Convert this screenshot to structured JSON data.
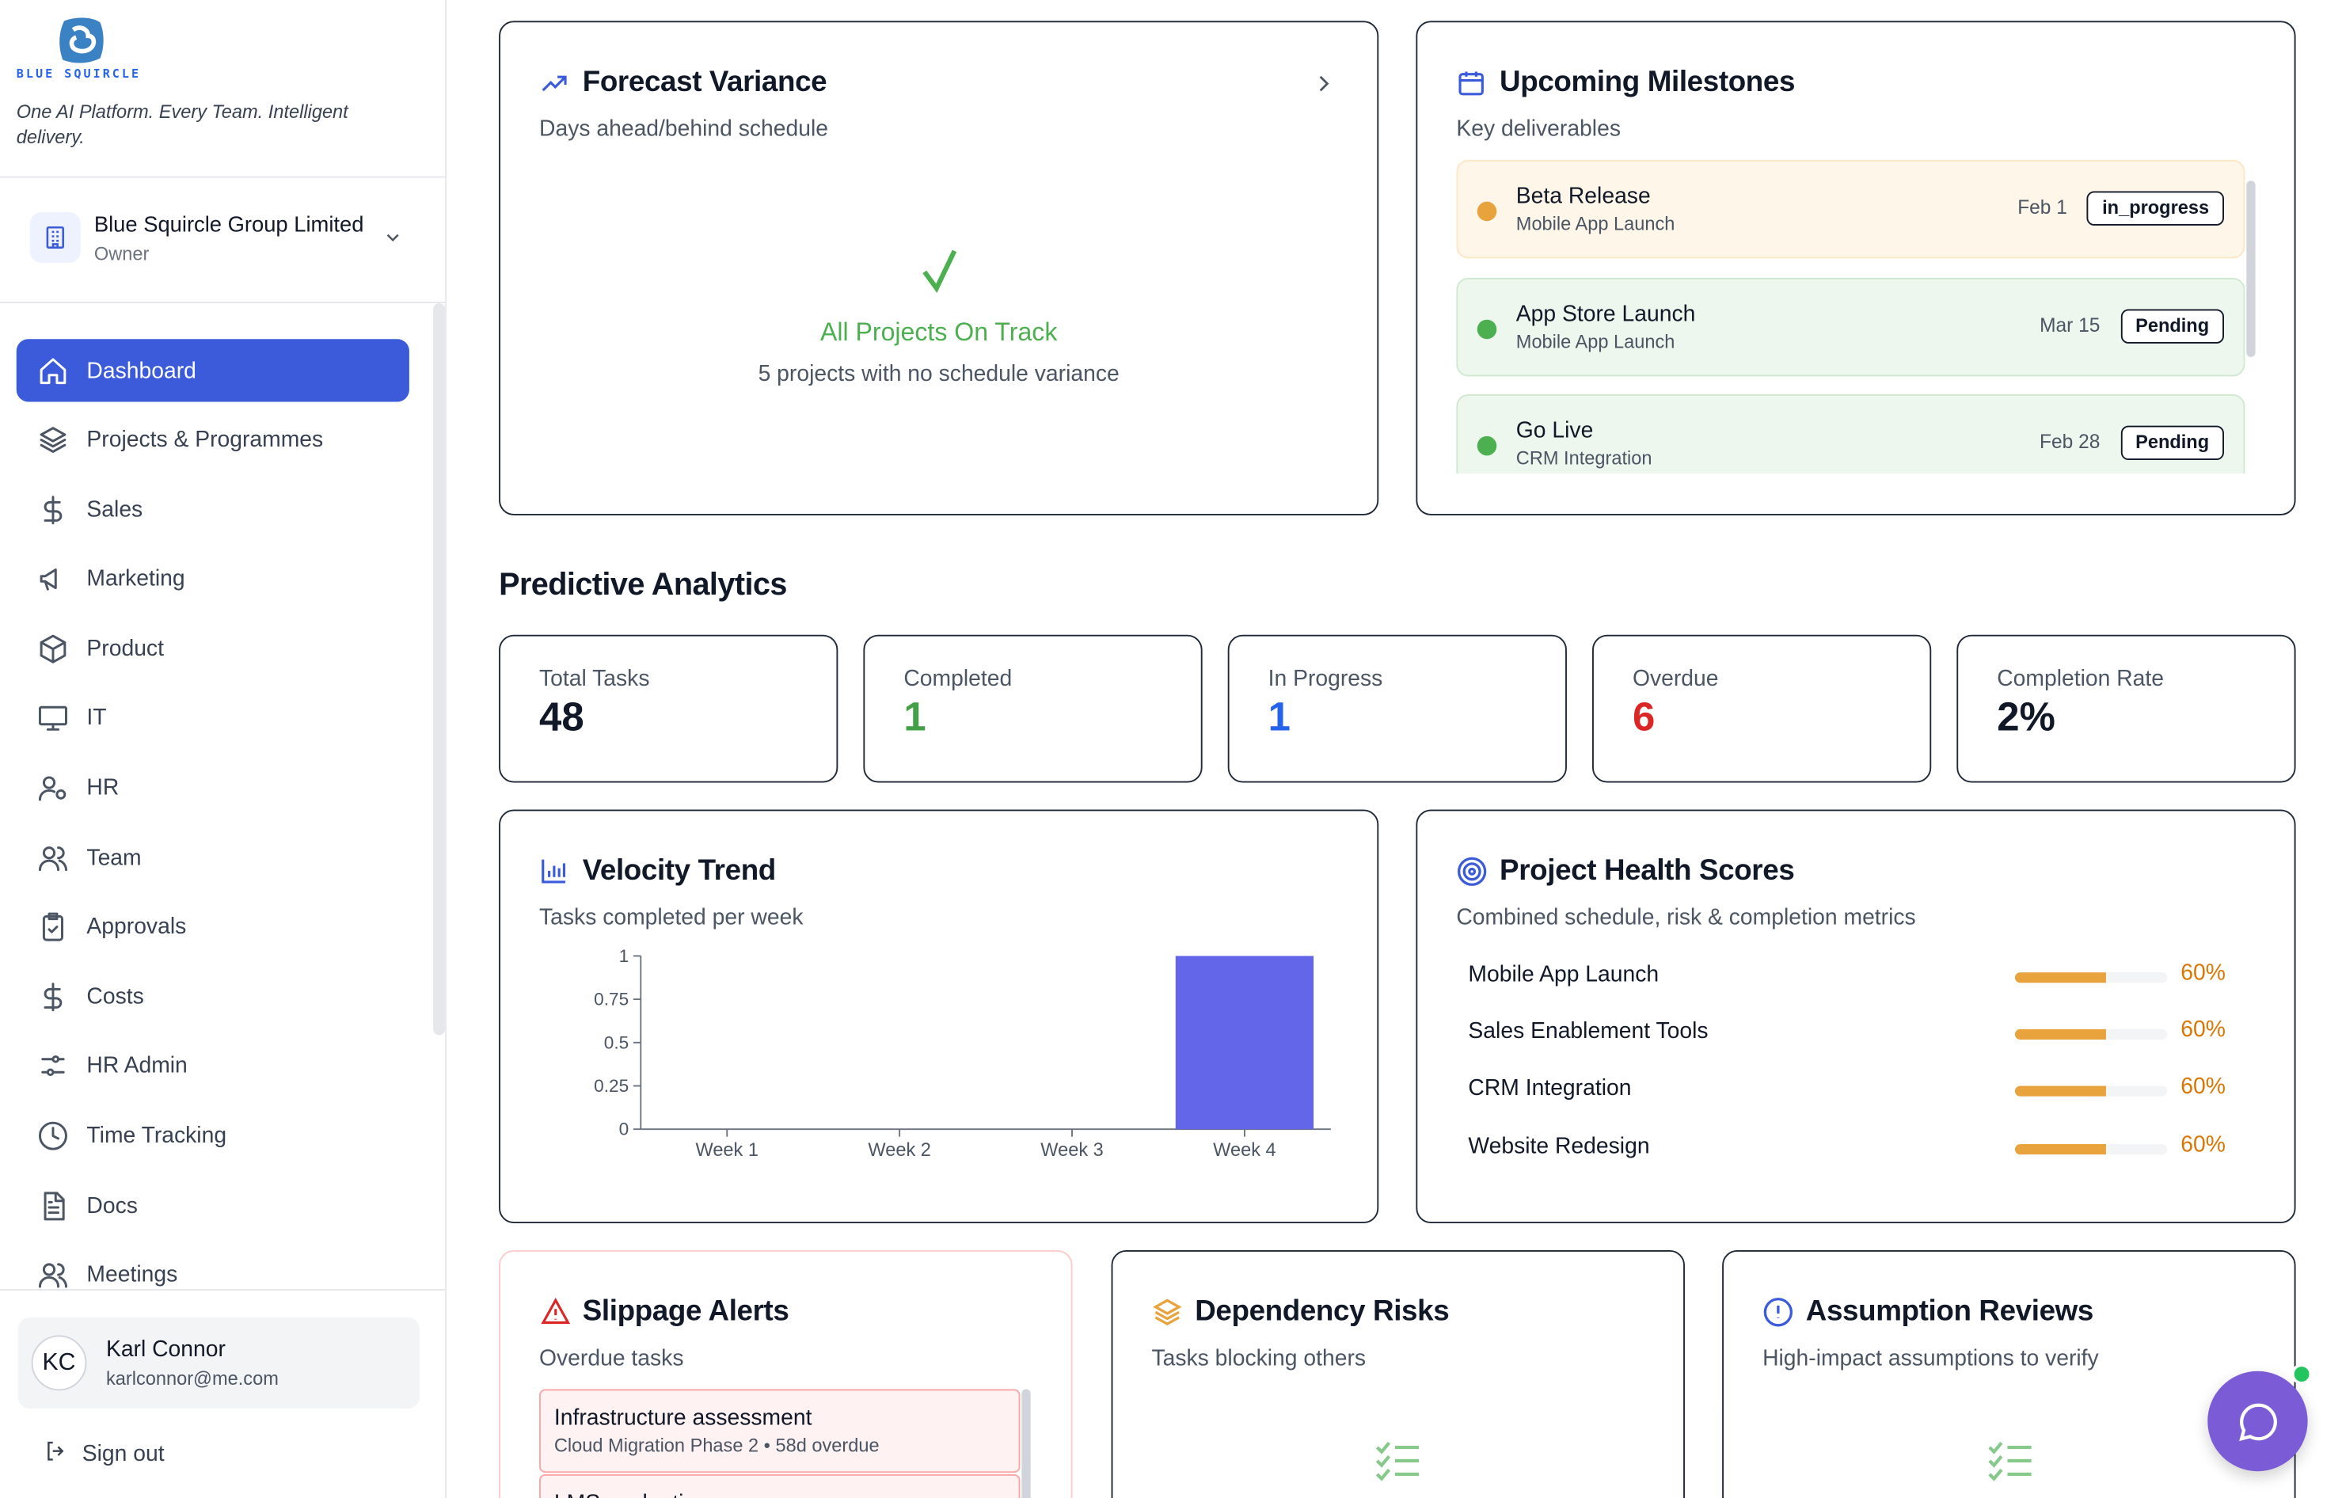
{
  "brand": {
    "name": "BLUE SQUIRCLE",
    "tagline": "One AI Platform. Every Team. Intelligent delivery."
  },
  "org": {
    "name": "Blue Squircle Group Limited",
    "role": "Owner"
  },
  "nav": [
    {
      "label": "Dashboard",
      "icon": "home-icon",
      "active": true
    },
    {
      "label": "Projects & Programmes",
      "icon": "layers-icon"
    },
    {
      "label": "Sales",
      "icon": "dollar-icon"
    },
    {
      "label": "Marketing",
      "icon": "megaphone-icon"
    },
    {
      "label": "Product",
      "icon": "box-icon"
    },
    {
      "label": "IT",
      "icon": "monitor-icon"
    },
    {
      "label": "HR",
      "icon": "user-gear-icon"
    },
    {
      "label": "Team",
      "icon": "users-icon"
    },
    {
      "label": "Approvals",
      "icon": "clipboard-check-icon"
    },
    {
      "label": "Costs",
      "icon": "dollar-icon"
    },
    {
      "label": "HR Admin",
      "icon": "sliders-icon"
    },
    {
      "label": "Time Tracking",
      "icon": "clock-icon"
    },
    {
      "label": "Docs",
      "icon": "document-icon"
    },
    {
      "label": "Meetings",
      "icon": "users-icon"
    }
  ],
  "user": {
    "initials": "KC",
    "name": "Karl Connor",
    "email": "karlconnor@me.com"
  },
  "signout_label": "Sign out",
  "forecast": {
    "title": "Forecast Variance",
    "subtitle": "Days ahead/behind schedule",
    "status_title": "All Projects On Track",
    "status_sub": "5 projects with no schedule variance"
  },
  "milestones": {
    "title": "Upcoming Milestones",
    "subtitle": "Key deliverables",
    "items": [
      {
        "name": "Beta Release",
        "project": "Mobile App Launch",
        "date": "Feb 1",
        "status": "in_progress",
        "color": "#e8a33d",
        "bg": "#fef6e8",
        "border": "#fde6c4"
      },
      {
        "name": "App Store Launch",
        "project": "Mobile App Launch",
        "date": "Mar 15",
        "status": "Pending",
        "color": "#4caf50",
        "bg": "#edf7ee",
        "border": "#cfe9d1"
      },
      {
        "name": "Go Live",
        "project": "CRM Integration",
        "date": "Feb 28",
        "status": "Pending",
        "color": "#4caf50",
        "bg": "#edf7ee",
        "border": "#cfe9d1"
      }
    ]
  },
  "analytics": {
    "title": "Predictive Analytics",
    "stats": [
      {
        "label": "Total Tasks",
        "value": "48",
        "color": "#111827"
      },
      {
        "label": "Completed",
        "value": "1",
        "color": "#43a047"
      },
      {
        "label": "In Progress",
        "value": "1",
        "color": "#2563eb"
      },
      {
        "label": "Overdue",
        "value": "6",
        "color": "#dc2626"
      },
      {
        "label": "Completion Rate",
        "value": "2%",
        "color": "#111827"
      }
    ]
  },
  "velocity": {
    "title": "Velocity Trend",
    "subtitle": "Tasks completed per week"
  },
  "chart_data": {
    "type": "bar",
    "categories": [
      "Week 1",
      "Week 2",
      "Week 3",
      "Week 4"
    ],
    "values": [
      0,
      0,
      0,
      1
    ],
    "yticks": [
      "0",
      "0.25",
      "0.5",
      "0.75",
      "1"
    ],
    "ylim": [
      0,
      1
    ],
    "bar_color": "#6366e8",
    "title": "",
    "xlabel": "",
    "ylabel": ""
  },
  "health": {
    "title": "Project Health Scores",
    "subtitle": "Combined schedule, risk & completion metrics",
    "rows": [
      {
        "name": "Mobile App Launch",
        "score": 60,
        "label": "60%"
      },
      {
        "name": "Sales Enablement Tools",
        "score": 60,
        "label": "60%"
      },
      {
        "name": "CRM Integration",
        "score": 60,
        "label": "60%"
      },
      {
        "name": "Website Redesign",
        "score": 60,
        "label": "60%"
      }
    ]
  },
  "slippage": {
    "title": "Slippage Alerts",
    "subtitle": "Overdue tasks",
    "items": [
      {
        "name": "Infrastructure assessment",
        "meta": "Cloud Migration Phase 2 • 58d overdue"
      },
      {
        "name": "LMS evaluation",
        "meta": ""
      }
    ]
  },
  "dependency": {
    "title": "Dependency Risks",
    "subtitle": "Tasks blocking others"
  },
  "assumption": {
    "title": "Assumption Reviews",
    "subtitle": "High-impact assumptions to verify"
  },
  "colors": {
    "accent": "#3b5bdb",
    "success": "#4caf50",
    "warning": "#e8a33d",
    "danger": "#dc2626"
  }
}
